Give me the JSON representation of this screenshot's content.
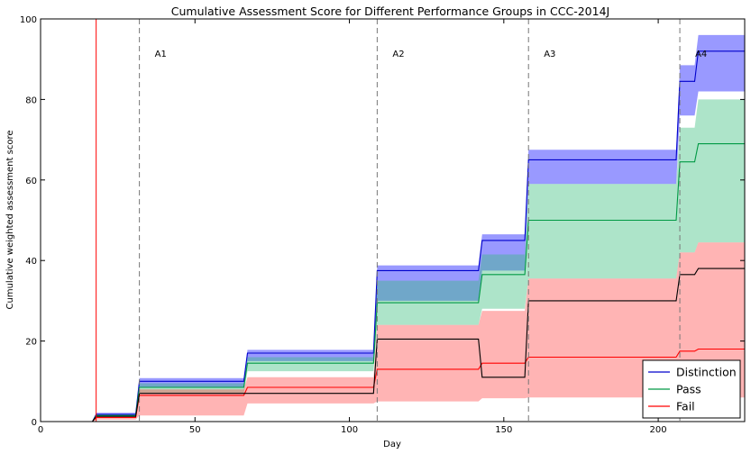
{
  "chart_data": {
    "type": "line",
    "title": "Cumulative Assessment Score for Different Performance Groups in CCC-2014J",
    "xlabel": "Day",
    "ylabel": "Cumulative weighted assessment score",
    "xlim": [
      0,
      228
    ],
    "ylim": [
      0,
      100
    ],
    "xticks": [
      0,
      50,
      100,
      150,
      200
    ],
    "yticks": [
      0,
      20,
      40,
      60,
      80,
      100
    ],
    "grid": false,
    "legend": "bottom-right",
    "vline_solid": {
      "x": 18,
      "color": "#ff0000"
    },
    "assessments": [
      {
        "label": "A1",
        "day": 32
      },
      {
        "label": "A2",
        "day": 109
      },
      {
        "label": "A3",
        "day": 158
      },
      {
        "label": "A4",
        "day": 207
      }
    ],
    "series": [
      {
        "name": "Distinction",
        "color": "#0000cc",
        "band_color": "#0000ff",
        "steps": [
          [
            0,
            0
          ],
          [
            18,
            1.8
          ],
          [
            32,
            10
          ],
          [
            67,
            17
          ],
          [
            109,
            37.5
          ],
          [
            143,
            45
          ],
          [
            158,
            65
          ],
          [
            207,
            84.5
          ],
          [
            213,
            92
          ],
          [
            228,
            92
          ]
        ],
        "upper": [
          [
            0,
            0
          ],
          [
            18,
            2.2
          ],
          [
            32,
            10.8
          ],
          [
            67,
            17.8
          ],
          [
            109,
            38.8
          ],
          [
            143,
            46.5
          ],
          [
            158,
            67.5
          ],
          [
            207,
            88.5
          ],
          [
            213,
            96
          ],
          [
            228,
            96
          ]
        ],
        "lower": [
          [
            0,
            0
          ],
          [
            18,
            1.5
          ],
          [
            32,
            8.5
          ],
          [
            67,
            15
          ],
          [
            109,
            30
          ],
          [
            143,
            37.5
          ],
          [
            158,
            59
          ],
          [
            207,
            76
          ],
          [
            213,
            82
          ],
          [
            228,
            82
          ]
        ]
      },
      {
        "name": "Pass",
        "color": "#009944",
        "band_color": "#33bb77",
        "steps": [
          [
            0,
            0
          ],
          [
            18,
            1.5
          ],
          [
            32,
            8.5
          ],
          [
            67,
            14.5
          ],
          [
            109,
            29.5
          ],
          [
            143,
            36.5
          ],
          [
            158,
            50
          ],
          [
            207,
            64.5
          ],
          [
            213,
            69
          ],
          [
            228,
            69
          ]
        ],
        "upper": [
          [
            0,
            0
          ],
          [
            18,
            1.8
          ],
          [
            32,
            9.5
          ],
          [
            67,
            16
          ],
          [
            109,
            35
          ],
          [
            143,
            41.5
          ],
          [
            158,
            59
          ],
          [
            207,
            73
          ],
          [
            213,
            80
          ],
          [
            228,
            80
          ]
        ],
        "lower": [
          [
            0,
            0
          ],
          [
            18,
            1.2
          ],
          [
            32,
            7
          ],
          [
            67,
            12.5
          ],
          [
            109,
            24
          ],
          [
            143,
            28
          ],
          [
            158,
            35.5
          ],
          [
            207,
            42
          ],
          [
            213,
            44.5
          ],
          [
            228,
            44.5
          ]
        ]
      },
      {
        "name": "Fail",
        "color": "#ff0000",
        "band_color": "#ff4444",
        "steps": [
          [
            0,
            0
          ],
          [
            18,
            1
          ],
          [
            32,
            6.5
          ],
          [
            67,
            8.5
          ],
          [
            109,
            13
          ],
          [
            143,
            14.5
          ],
          [
            158,
            16
          ],
          [
            207,
            17.5
          ],
          [
            213,
            18
          ],
          [
            228,
            18
          ]
        ],
        "upper": [
          [
            0,
            0
          ],
          [
            18,
            1.3
          ],
          [
            32,
            8
          ],
          [
            67,
            11
          ],
          [
            109,
            24
          ],
          [
            143,
            27.5
          ],
          [
            158,
            35.5
          ],
          [
            207,
            42
          ],
          [
            213,
            44.5
          ],
          [
            228,
            44.5
          ]
        ],
        "lower": [
          [
            0,
            0
          ],
          [
            18,
            0.5
          ],
          [
            32,
            1.5
          ],
          [
            67,
            4.5
          ],
          [
            109,
            5
          ],
          [
            143,
            5.8
          ],
          [
            158,
            6
          ],
          [
            207,
            6
          ],
          [
            213,
            6
          ],
          [
            228,
            6
          ]
        ]
      },
      {
        "name": "",
        "color": "#000000",
        "band_color": null,
        "steps": [
          [
            0,
            0
          ],
          [
            18,
            1.3
          ],
          [
            32,
            7
          ],
          [
            67,
            7
          ],
          [
            109,
            20.5
          ],
          [
            143,
            11
          ],
          [
            158,
            30
          ],
          [
            207,
            36.5
          ],
          [
            213,
            38
          ],
          [
            228,
            38
          ]
        ],
        "upper": null,
        "lower": null
      }
    ]
  }
}
